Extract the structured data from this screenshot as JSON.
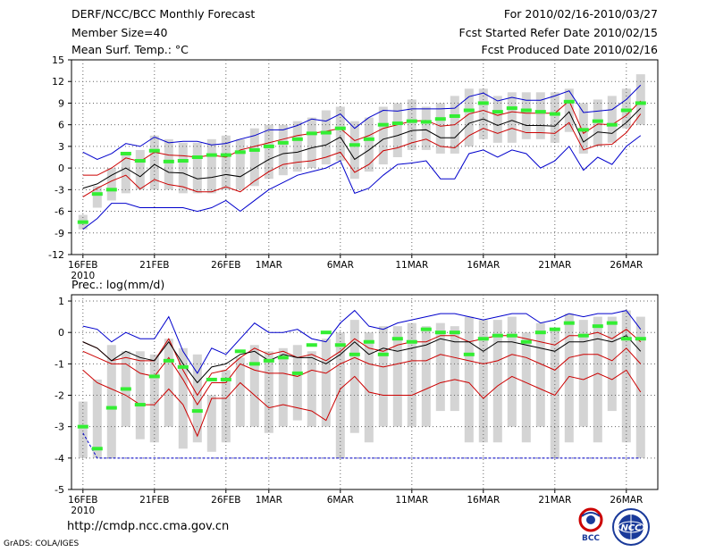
{
  "header": {
    "title": "DERF/NCC/BCC Monthly Forecast",
    "member_size": "Member Size=40",
    "variable1": "Mean Surf. Temp.: °C",
    "period": "For 2010/02/16-2010/03/27",
    "started": "Fcst Started Refer Date 2010/02/15",
    "produced": "Fcst Produced Date 2010/02/16"
  },
  "footer": {
    "url": "http://cmdp.ncc.cma.gov.cn",
    "credit": "GrADS: COLA/IGES",
    "logo_bcc": "BCC",
    "logo_ncc": "NCC"
  },
  "colors": {
    "box": "#d4d4d4",
    "outer": "#0000cc",
    "inner": "#cc0000",
    "mean": "#000000",
    "obs": "#33ee33",
    "grid": "#666666"
  },
  "chart_data": [
    {
      "type": "box",
      "title": "Mean Surf. Temp.: °C",
      "xlabel": "",
      "ylabel": "",
      "ylim": [
        -12,
        15
      ],
      "yticks": [
        -12,
        -9,
        -6,
        -3,
        0,
        3,
        6,
        9,
        12,
        15
      ],
      "yticklabels": [
        "-12",
        "-9",
        "-6",
        "-3",
        "0",
        "3",
        "6",
        "9",
        "12",
        "15"
      ],
      "xticks": [
        {
          "day": 1,
          "label": "16FEB",
          "sub": "2010"
        },
        {
          "day": 6,
          "label": "21FEB"
        },
        {
          "day": 11,
          "label": "26FEB"
        },
        {
          "day": 14,
          "label": "1MAR"
        },
        {
          "day": 19,
          "label": "6MAR"
        },
        {
          "day": 24,
          "label": "11MAR"
        },
        {
          "day": 29,
          "label": "16MAR"
        },
        {
          "day": 34,
          "label": "21MAR"
        },
        {
          "day": 39,
          "label": "26MAR"
        }
      ],
      "days": [
        1,
        2,
        3,
        4,
        5,
        6,
        7,
        8,
        9,
        10,
        11,
        12,
        13,
        14,
        15,
        16,
        17,
        18,
        19,
        20,
        21,
        22,
        23,
        24,
        25,
        26,
        27,
        28,
        29,
        30,
        31,
        32,
        33,
        34,
        35,
        36,
        37,
        38,
        39,
        40
      ],
      "box_low": [
        -8.5,
        -5.5,
        -4.5,
        -3.5,
        -3,
        -3,
        -3,
        -3.5,
        -3.5,
        -3.5,
        -3,
        -3,
        -2.5,
        -1.5,
        -1,
        -0.5,
        0,
        0.5,
        1,
        -1.5,
        -0.5,
        0.5,
        1.5,
        2.5,
        2.5,
        2,
        2,
        3,
        4,
        3.5,
        3.5,
        4,
        4,
        3.5,
        5,
        2,
        3,
        3.5,
        5.5,
        6
      ],
      "box_high": [
        -6.5,
        -2.5,
        0,
        2,
        2.5,
        4.5,
        4,
        3.5,
        3.5,
        4,
        4.5,
        4,
        5.5,
        6,
        6,
        6.5,
        7,
        8,
        8.5,
        6.5,
        7,
        8.5,
        9,
        9.5,
        8.5,
        9,
        10,
        11,
        11,
        10,
        10.5,
        10.5,
        10.5,
        10.5,
        11,
        9,
        9.5,
        10,
        11,
        13
      ],
      "series": [
        {
          "name": "max",
          "values": [
            2.2,
            1.2,
            2.0,
            3.4,
            3.0,
            4.3,
            3.5,
            3.7,
            3.7,
            3.2,
            3.4,
            4.0,
            4.5,
            5.3,
            5.3,
            5.9,
            6.8,
            6.5,
            7.5,
            5.5,
            7.0,
            8.0,
            7.9,
            8.2,
            8.2,
            8.2,
            8.3,
            9.9,
            10.4,
            9.3,
            9.8,
            9.4,
            9.4,
            10.0,
            10.7,
            7.7,
            7.9,
            8.1,
            9.5,
            11.5
          ]
        },
        {
          "name": "upper",
          "values": [
            -1.0,
            -1.0,
            0.0,
            1.4,
            0.9,
            2.2,
            1.8,
            1.7,
            1.5,
            1.8,
            1.5,
            2.5,
            3.0,
            3.5,
            4.0,
            4.5,
            4.8,
            5.1,
            5.5,
            3.8,
            4.5,
            5.5,
            6.0,
            6.5,
            6.6,
            5.8,
            6.0,
            7.5,
            8.0,
            7.3,
            7.8,
            7.6,
            7.6,
            7.6,
            9.3,
            4.8,
            6.1,
            6.0,
            7.3,
            9.3
          ]
        },
        {
          "name": "mean",
          "values": [
            -2.8,
            -2.2,
            -1.0,
            0.0,
            -1.2,
            0.5,
            -0.6,
            -0.7,
            -1.5,
            -1.3,
            -0.9,
            -1.2,
            0.0,
            1.2,
            2.0,
            2.2,
            2.8,
            3.2,
            4.3,
            1.2,
            2.5,
            4.0,
            4.5,
            5.2,
            5.3,
            4.2,
            4.2,
            6.2,
            6.8,
            5.9,
            6.6,
            5.9,
            5.9,
            5.8,
            7.8,
            3.6,
            5.0,
            4.8,
            6.3,
            8.3
          ]
        },
        {
          "name": "lower",
          "values": [
            -4.0,
            -2.8,
            -1.8,
            -1.0,
            -2.9,
            -1.6,
            -2.3,
            -2.6,
            -3.3,
            -3.3,
            -2.6,
            -3.3,
            -1.8,
            -0.5,
            0.5,
            0.8,
            1.0,
            1.5,
            2.2,
            -0.6,
            0.5,
            2.4,
            2.8,
            3.5,
            4.0,
            3.0,
            2.8,
            4.5,
            5.5,
            4.8,
            5.5,
            4.9,
            4.9,
            4.8,
            6.3,
            2.5,
            3.2,
            3.3,
            4.9,
            7.5
          ]
        },
        {
          "name": "min",
          "values": [
            -8.5,
            -7.0,
            -4.9,
            -4.9,
            -5.5,
            -5.5,
            -5.5,
            -5.5,
            -6.0,
            -5.5,
            -4.5,
            -6.0,
            -4.5,
            -3.0,
            -2.0,
            -1.0,
            -0.5,
            0.0,
            1.0,
            -3.5,
            -2.8,
            -1.0,
            0.5,
            0.7,
            1.0,
            -1.5,
            -1.5,
            2.0,
            2.5,
            1.5,
            2.5,
            2.0,
            0.0,
            1.0,
            3.0,
            -0.3,
            1.5,
            0.5,
            3.0,
            4.5
          ]
        },
        {
          "name": "obs",
          "values": [
            -7.5,
            -3.6,
            -3.0,
            2.0,
            1.0,
            2.4,
            0.9,
            1.0,
            1.5,
            1.8,
            1.8,
            2.2,
            2.5,
            3.0,
            3.5,
            4.0,
            4.8,
            4.9,
            5.5,
            3.2,
            4.0,
            6.0,
            6.2,
            6.5,
            6.4,
            6.8,
            7.2,
            8.0,
            9.0,
            7.8,
            8.3,
            8.0,
            7.8,
            7.5,
            9.2,
            5.3,
            6.5,
            6.0,
            8.0,
            9.0
          ]
        }
      ]
    },
    {
      "type": "box",
      "title": "Prec.: log(mm/d)",
      "xlabel": "",
      "ylabel": "",
      "ylim": [
        -5,
        1.2
      ],
      "yticks": [
        -5,
        -4,
        -3,
        -2,
        -1,
        0,
        1
      ],
      "yticklabels": [
        "-5",
        "-4",
        "-3",
        "-2",
        "-1",
        "0",
        "1"
      ],
      "xticks": [
        {
          "day": 1,
          "label": "16FEB",
          "sub": "2010"
        },
        {
          "day": 6,
          "label": "21FEB"
        },
        {
          "day": 11,
          "label": "26FEB"
        },
        {
          "day": 14,
          "label": "1MAR"
        },
        {
          "day": 19,
          "label": "6MAR"
        },
        {
          "day": 24,
          "label": "11MAR"
        },
        {
          "day": 29,
          "label": "16MAR"
        },
        {
          "day": 34,
          "label": "21MAR"
        },
        {
          "day": 39,
          "label": "26MAR"
        }
      ],
      "days": [
        1,
        2,
        3,
        4,
        5,
        6,
        7,
        8,
        9,
        10,
        11,
        12,
        13,
        14,
        15,
        16,
        17,
        18,
        19,
        20,
        21,
        22,
        23,
        24,
        25,
        26,
        27,
        28,
        29,
        30,
        31,
        32,
        33,
        34,
        35,
        36,
        37,
        38,
        39,
        40
      ],
      "box_low": [
        -4,
        -4,
        -4,
        -3,
        -3.4,
        -3.5,
        -3,
        -3.7,
        -3.5,
        -3.8,
        -3.5,
        -3,
        -3,
        -3.2,
        -3,
        -2.8,
        -3,
        -3,
        -4,
        -3.2,
        -3.5,
        -3,
        -3,
        -3,
        -3,
        -2.5,
        -2.5,
        -3.5,
        -3.5,
        -3.5,
        -3,
        -3.5,
        -3,
        -4,
        -3.5,
        -3,
        -3.5,
        -2.5,
        -3.5,
        -4
      ],
      "box_high": [
        -2.2,
        -1.5,
        -0.4,
        -0.6,
        -0.6,
        -0.7,
        -0.2,
        -0.5,
        -0.7,
        -2.0,
        -1.2,
        -0.8,
        -0.4,
        -0.6,
        -0.5,
        -0.4,
        -0.6,
        -0.2,
        0.0,
        0.4,
        0.0,
        0.2,
        0.2,
        0.3,
        0.2,
        0.3,
        0.2,
        0.5,
        0.4,
        0.4,
        0.5,
        0.0,
        0.3,
        0.1,
        0.6,
        0.4,
        0.5,
        0.5,
        0.7,
        0.5
      ],
      "series": [
        {
          "name": "max",
          "values": [
            0.2,
            0.1,
            -0.3,
            0.0,
            -0.2,
            -0.2,
            0.5,
            -0.6,
            -1.3,
            -0.5,
            -0.7,
            -0.2,
            0.3,
            0.0,
            0.0,
            0.1,
            -0.2,
            -0.3,
            0.3,
            0.7,
            0.2,
            0.1,
            0.3,
            0.4,
            0.5,
            0.6,
            0.6,
            0.5,
            0.4,
            0.5,
            0.6,
            0.6,
            0.3,
            0.4,
            0.6,
            0.5,
            0.6,
            0.6,
            0.7,
            0.1
          ]
        },
        {
          "name": "upper",
          "values": [
            -0.3,
            -0.5,
            -0.9,
            -0.8,
            -0.9,
            -0.9,
            -0.2,
            -1.2,
            -2.0,
            -1.3,
            -1.2,
            -0.8,
            -0.5,
            -0.7,
            -0.6,
            -0.8,
            -0.7,
            -0.9,
            -0.6,
            -0.2,
            -0.5,
            -0.6,
            -0.4,
            -0.3,
            -0.3,
            -0.1,
            -0.1,
            -0.3,
            -0.2,
            -0.1,
            -0.1,
            -0.2,
            -0.3,
            -0.4,
            -0.1,
            -0.1,
            0.0,
            -0.2,
            0.1,
            -0.3
          ]
        },
        {
          "name": "mean",
          "values": [
            -0.3,
            -0.5,
            -0.9,
            -0.6,
            -0.8,
            -0.9,
            -0.3,
            -1.0,
            -1.6,
            -1.1,
            -1.0,
            -0.7,
            -0.6,
            -0.9,
            -0.7,
            -0.8,
            -0.8,
            -1.0,
            -0.7,
            -0.3,
            -0.7,
            -0.5,
            -0.6,
            -0.5,
            -0.4,
            -0.2,
            -0.3,
            -0.3,
            -0.6,
            -0.3,
            -0.3,
            -0.4,
            -0.5,
            -0.6,
            -0.3,
            -0.3,
            -0.2,
            -0.3,
            -0.1,
            -0.6
          ]
        },
        {
          "name": "lower",
          "values": [
            -0.6,
            -0.8,
            -1.0,
            -1.0,
            -1.3,
            -1.4,
            -0.8,
            -1.5,
            -2.3,
            -1.6,
            -1.6,
            -1.0,
            -1.2,
            -1.3,
            -1.3,
            -1.4,
            -1.2,
            -1.3,
            -1.0,
            -0.8,
            -1.0,
            -1.1,
            -1.0,
            -0.9,
            -0.9,
            -0.7,
            -0.8,
            -0.9,
            -1.0,
            -0.9,
            -0.7,
            -0.8,
            -1.0,
            -1.2,
            -0.8,
            -0.7,
            -0.7,
            -0.9,
            -0.5,
            -1.0
          ]
        },
        {
          "name": "low",
          "values": [
            -1.2,
            -1.6,
            -1.8,
            -2.0,
            -2.3,
            -2.3,
            -1.8,
            -2.3,
            -3.3,
            -2.1,
            -2.1,
            -1.6,
            -2.0,
            -2.4,
            -2.3,
            -2.4,
            -2.5,
            -2.8,
            -1.8,
            -1.4,
            -1.9,
            -2.0,
            -2.0,
            -2.0,
            -1.8,
            -1.6,
            -1.5,
            -1.6,
            -2.1,
            -1.7,
            -1.4,
            -1.6,
            -1.8,
            -2.0,
            -1.4,
            -1.5,
            -1.3,
            -1.5,
            -1.2,
            -1.9
          ]
        },
        {
          "name": "min",
          "values": [
            -3.2,
            -4.0,
            -4.0,
            -4.0,
            -4.0,
            -4.0,
            -4.0,
            -4.0,
            -4.0,
            -4.0,
            -4.0,
            -4.0,
            -4.0,
            -4.0,
            -4.0,
            -4.0,
            -4.0,
            -4.0,
            -4.0,
            -4.0,
            -4.0,
            -4.0,
            -4.0,
            -4.0,
            -4.0,
            -4.0,
            -4.0,
            -4.0,
            -4.0,
            -4.0,
            -4.0,
            -4.0,
            -4.0,
            -4.0,
            -4.0,
            -4.0,
            -4.0,
            -4.0,
            -4.0,
            -4.0
          ]
        },
        {
          "name": "obs",
          "values": [
            -3.0,
            -3.7,
            -2.4,
            -1.8,
            -2.3,
            -1.4,
            -0.9,
            -1.1,
            -2.5,
            -1.5,
            -1.5,
            -0.6,
            -1.0,
            -0.9,
            -0.8,
            -1.3,
            -0.4,
            0.0,
            -0.4,
            -0.7,
            -0.3,
            -0.7,
            -0.2,
            -0.3,
            0.1,
            0.0,
            0.0,
            -0.7,
            -0.2,
            -0.1,
            -0.1,
            -0.3,
            0.0,
            0.1,
            0.3,
            -0.1,
            0.2,
            0.3,
            -0.2,
            -0.2
          ]
        }
      ]
    }
  ]
}
